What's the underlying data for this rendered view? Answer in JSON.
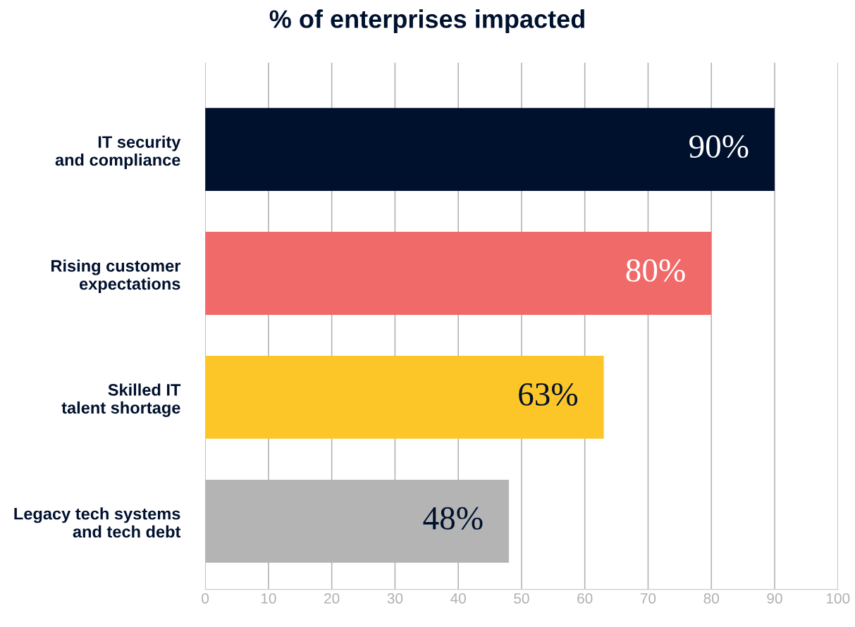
{
  "chart_data": {
    "type": "bar",
    "orientation": "horizontal",
    "title": "% of enterprises impacted",
    "categories": [
      "IT security\nand compliance",
      "Rising customer\nexpectations",
      "Skilled IT\ntalent shortage",
      "Legacy tech systems\nand tech debt"
    ],
    "values": [
      90,
      80,
      63,
      48
    ],
    "colors": [
      "#00112e",
      "#f06a6a",
      "#fdc628",
      "#b3b4b3"
    ],
    "value_labels": [
      "90%",
      "80%",
      "63%",
      "48%"
    ],
    "xlim": [
      0,
      100
    ],
    "xticks": [
      0,
      10,
      20,
      30,
      40,
      50,
      60,
      70,
      80,
      90,
      100
    ],
    "grid": "x",
    "legend": false
  }
}
